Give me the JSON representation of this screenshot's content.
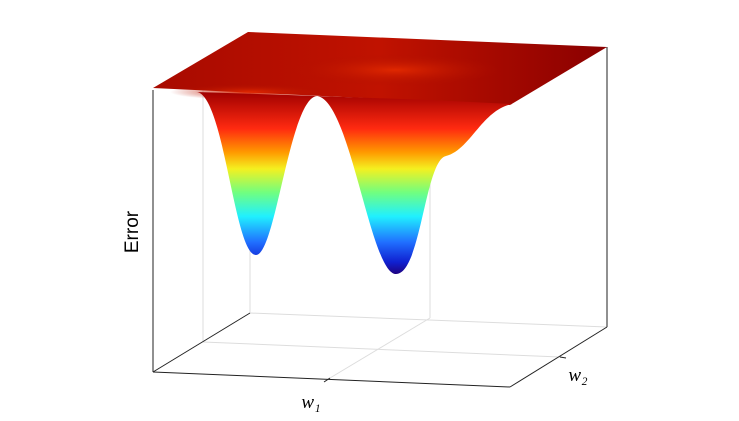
{
  "chart_data": {
    "type": "surface",
    "zlabel": "Error",
    "xlabel": "w₁",
    "ylabel": "w₂"
  }
}
